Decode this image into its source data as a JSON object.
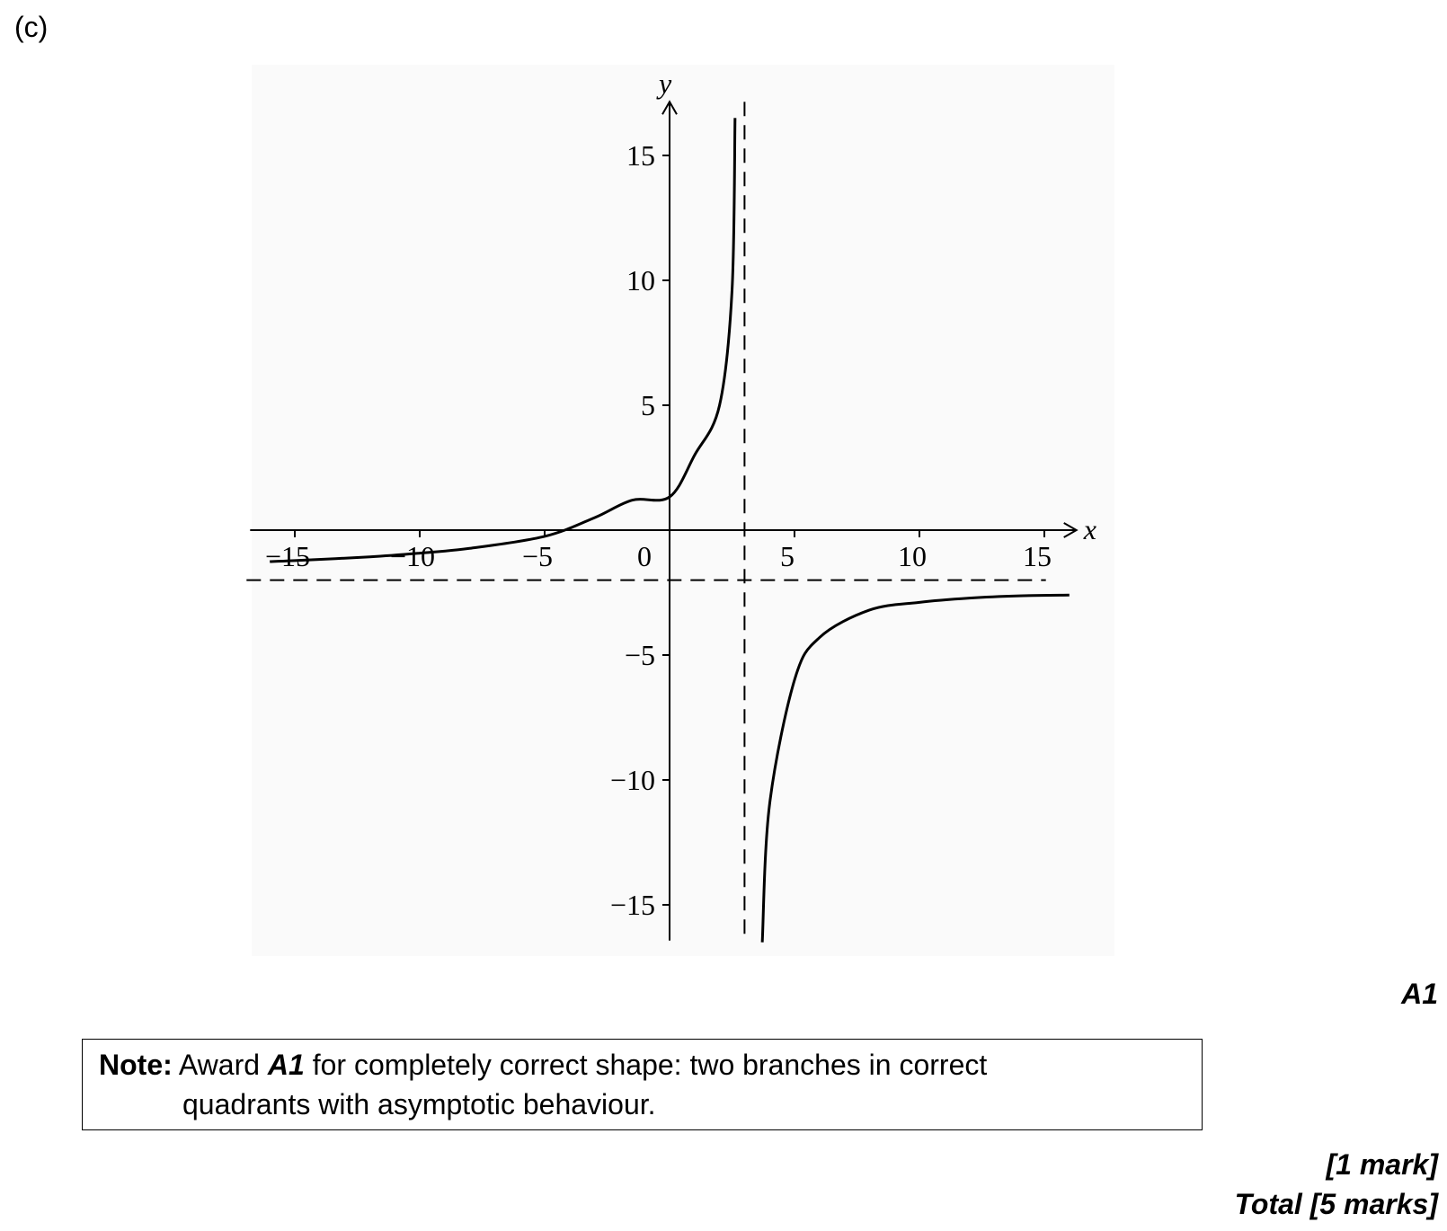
{
  "part_label": "(c)",
  "mark_a1": "A1",
  "note": {
    "prefix": "Note:",
    "text_before": " Award ",
    "award_code": "A1",
    "text_after": " for completely correct shape: two branches in correct",
    "line2": "quadrants with asymptotic behaviour."
  },
  "marks_line": "[1 mark]",
  "total_line": "Total [5 marks]",
  "chart_data": {
    "type": "line",
    "xlabel": "x",
    "ylabel": "y",
    "xlim": [
      -16.5,
      16.5
    ],
    "ylim": [
      -16.5,
      16.5
    ],
    "x_ticks": [
      -15,
      -10,
      -5,
      0,
      5,
      10,
      15
    ],
    "x_tick_labels": [
      "−15",
      "−10",
      "−5",
      "0",
      "5",
      "10",
      "15"
    ],
    "y_ticks": [
      15,
      10,
      5,
      -5,
      -10,
      -15
    ],
    "y_tick_labels": [
      "15",
      "10",
      "5",
      "−5",
      "−10",
      "−15"
    ],
    "asymptotes": {
      "vertical_x": 3,
      "horizontal_y": -2
    },
    "series": [
      {
        "branch": "left",
        "x": [
          -16,
          -15,
          -12,
          -10,
          -8,
          -5,
          -3,
          -1.5,
          0,
          1,
          2,
          2.5,
          2.62
        ],
        "y": [
          -1.26,
          -1.22,
          -1.07,
          -0.92,
          -0.73,
          -0.25,
          0.5,
          1.2,
          1.33,
          3.0,
          5.0,
          9.6,
          16.5
        ]
      },
      {
        "branch": "right",
        "x": [
          3.71,
          4,
          5,
          6,
          8,
          10,
          12,
          14,
          16
        ],
        "y": [
          -16.5,
          -11.0,
          -6.0,
          -4.3,
          -3.2,
          -2.89,
          -2.72,
          -2.63,
          -2.6
        ]
      }
    ],
    "grid": false,
    "legend": "none"
  }
}
